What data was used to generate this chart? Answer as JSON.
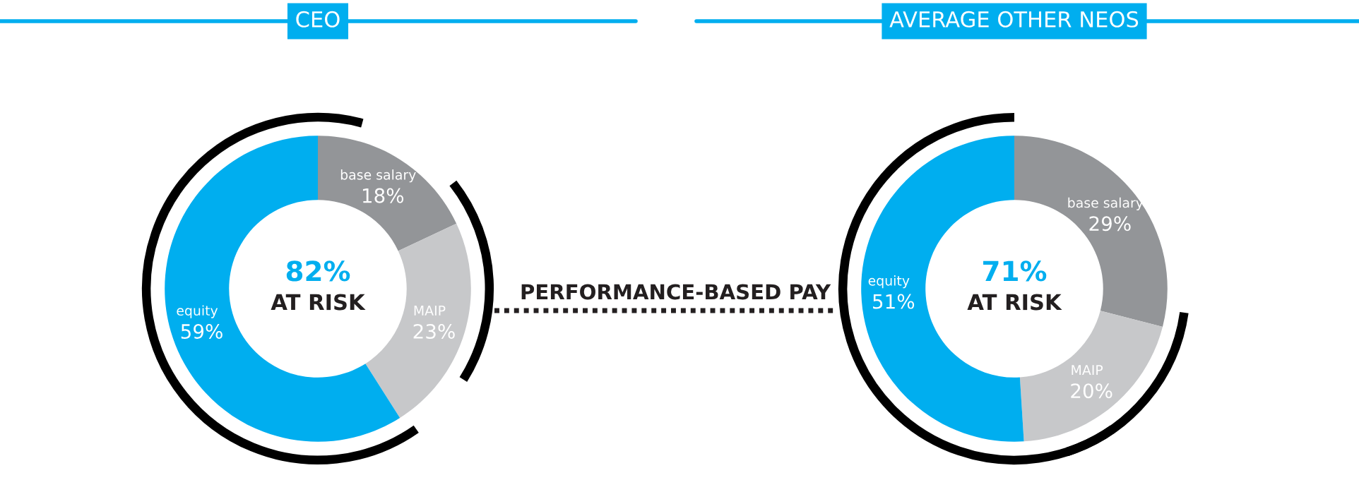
{
  "chart_data": [
    {
      "type": "donut",
      "title": "CEO",
      "categories": [
        "base salary",
        "MAIP",
        "equity"
      ],
      "values": [
        18,
        23,
        59
      ],
      "value_labels": [
        "18%",
        "23%",
        "59%"
      ],
      "colors": [
        "#939598",
        "#c7c8ca",
        "#00aeef"
      ],
      "annotations": [
        "82%",
        "AT RISK",
        "PERFORMANCE-BASED PAY"
      ],
      "legend": false
    },
    {
      "type": "donut",
      "title": "AVERAGE OTHER NEOS",
      "categories": [
        "base salary",
        "MAIP",
        "equity"
      ],
      "values": [
        29,
        20,
        51
      ],
      "value_labels": [
        "29%",
        "20%",
        "51%"
      ],
      "colors": [
        "#939598",
        "#c7c8ca",
        "#00aeef"
      ],
      "annotations": [
        "71%",
        "AT RISK"
      ],
      "legend": false
    }
  ]
}
